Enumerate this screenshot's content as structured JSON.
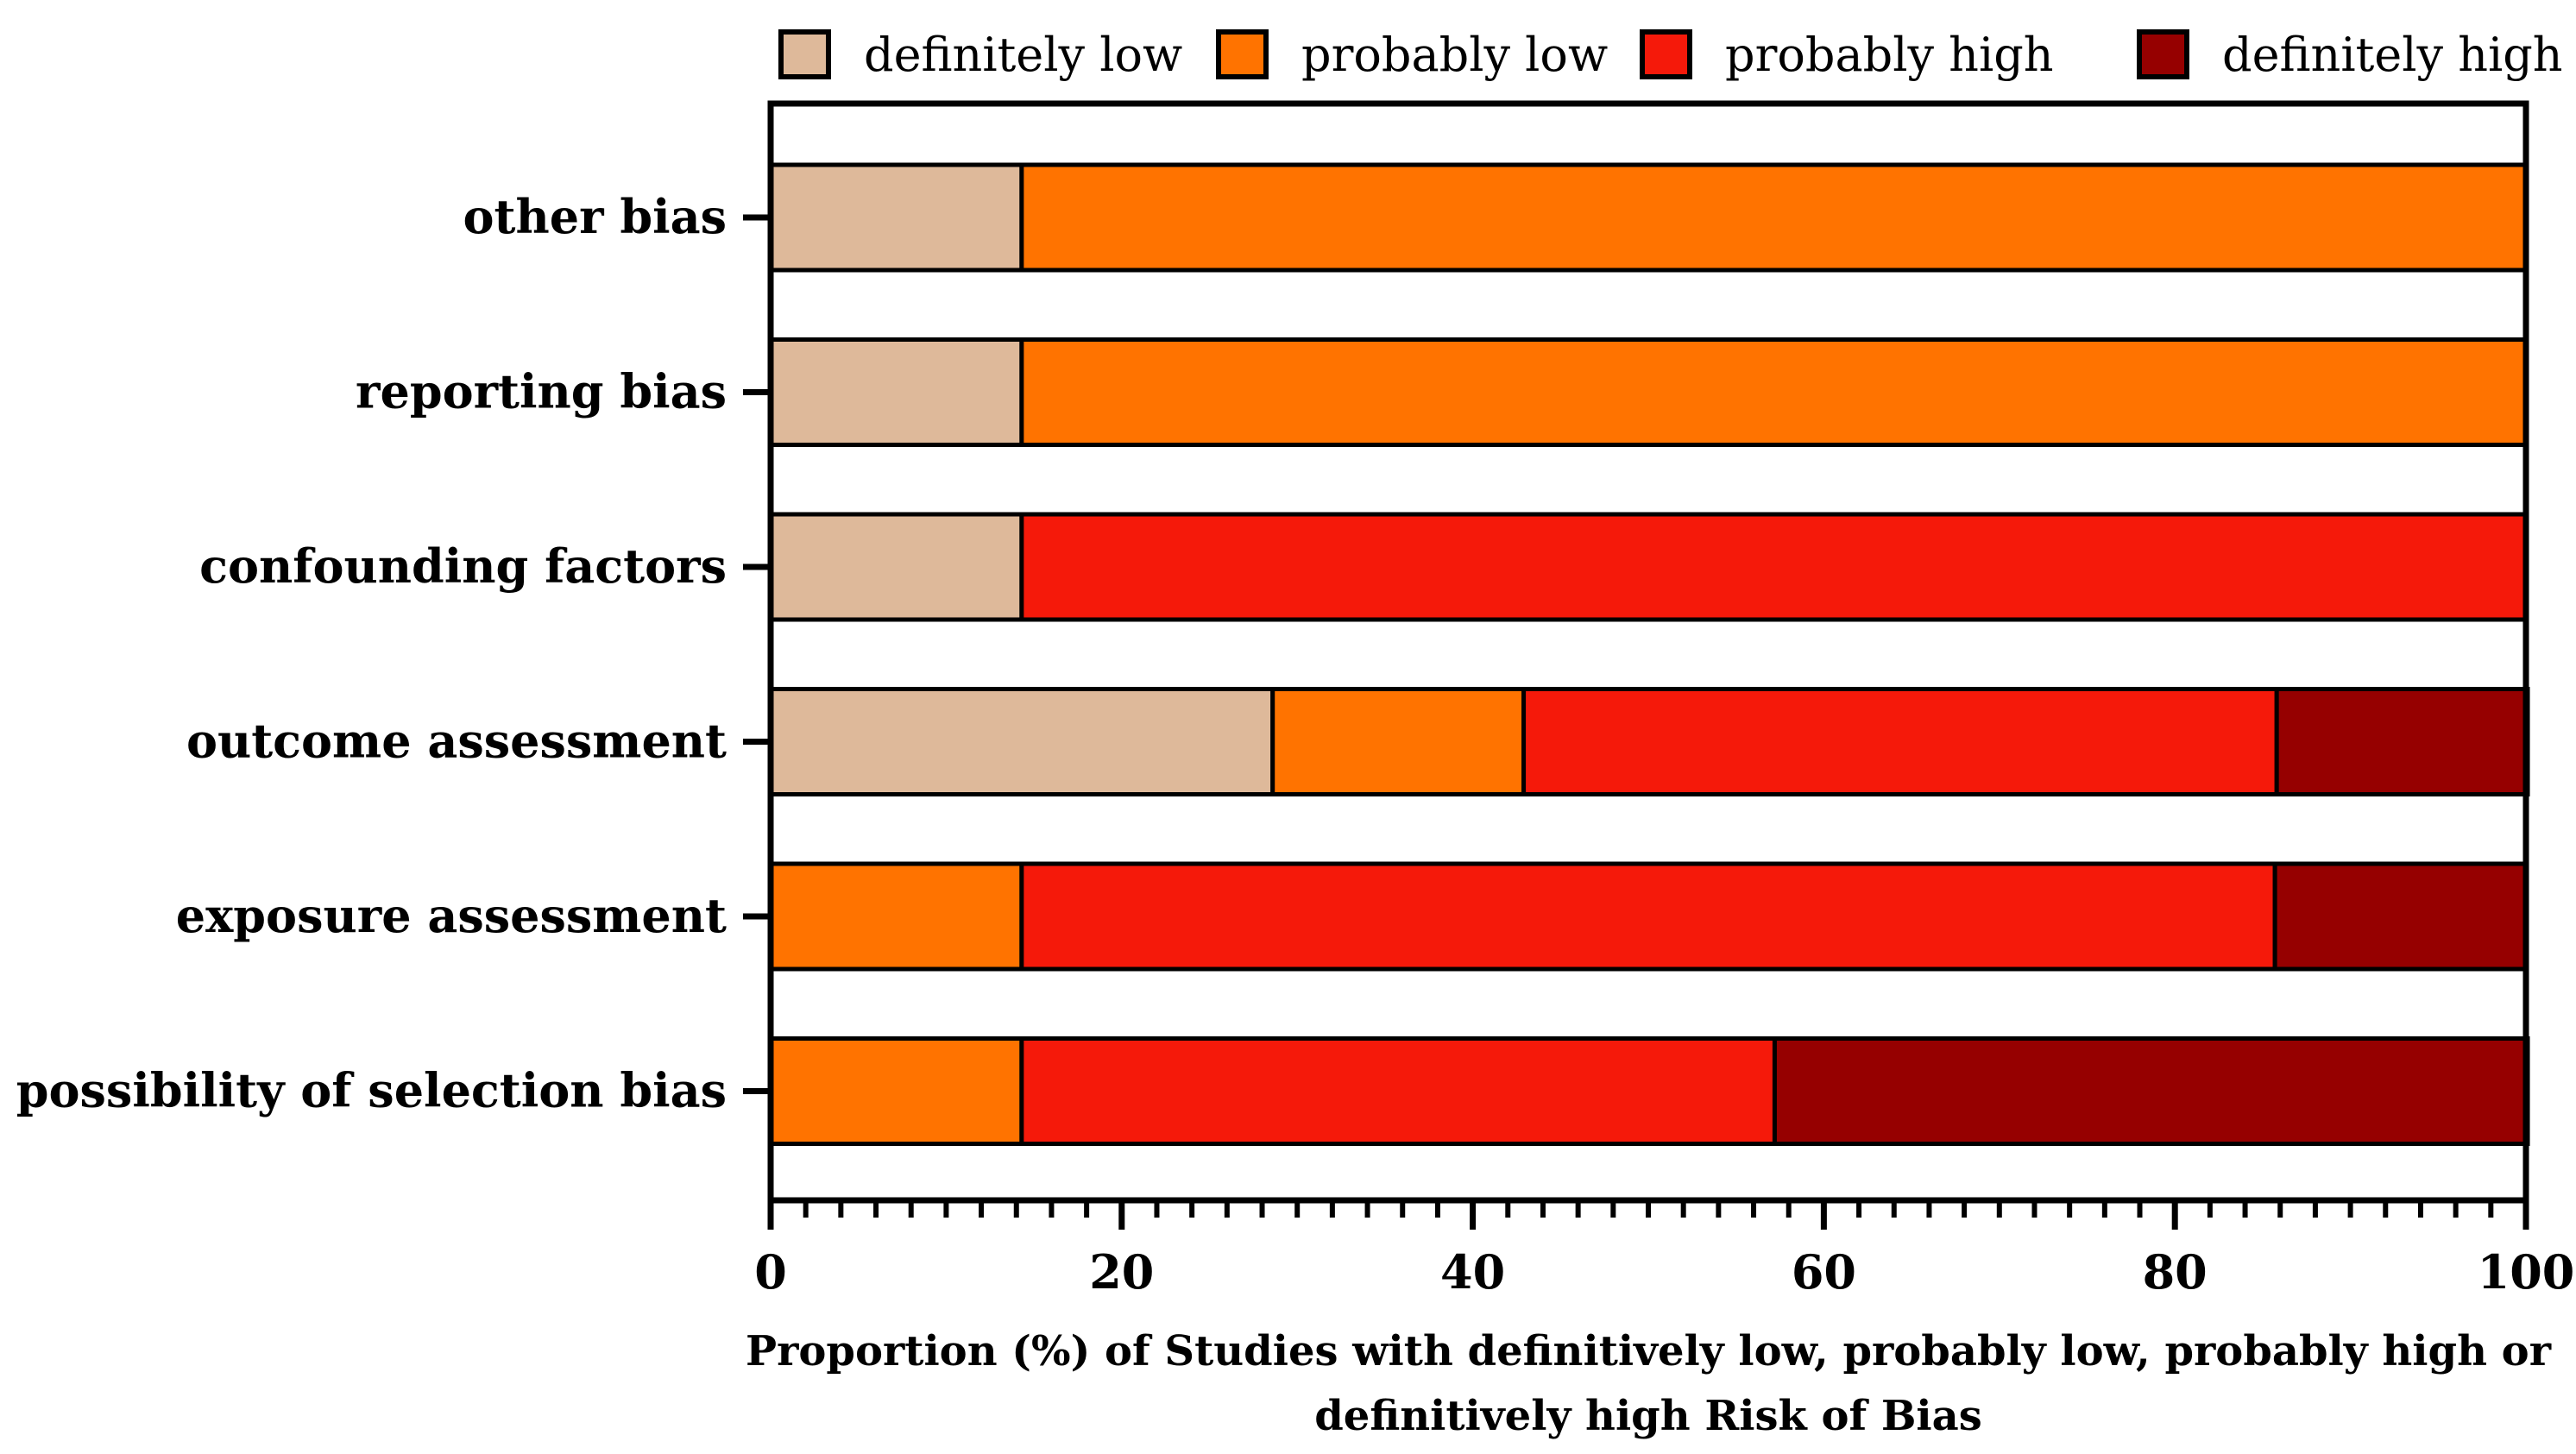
{
  "chart_data": {
    "type": "bar",
    "orientation": "horizontal",
    "stacked": true,
    "categories": [
      "other bias",
      "reporting bias",
      "confounding factors",
      "outcome assessment",
      "exposure assessment",
      "possibility of selection bias"
    ],
    "series": [
      {
        "name": "definitely low",
        "color": "#DEB99A",
        "values": [
          14.3,
          14.3,
          14.3,
          28.6,
          0,
          0
        ]
      },
      {
        "name": "probably low",
        "color": "#FF7300",
        "values": [
          85.7,
          85.7,
          0,
          14.3,
          14.3,
          14.3
        ]
      },
      {
        "name": "probably high",
        "color": "#F5190A",
        "values": [
          0,
          0,
          85.7,
          42.9,
          71.4,
          42.9
        ]
      },
      {
        "name": "definitely high",
        "color": "#960000",
        "values": [
          0,
          0,
          0,
          14.3,
          14.3,
          42.9
        ]
      }
    ],
    "xlim": [
      0,
      100
    ],
    "xticks": [
      "0",
      "20",
      "40",
      "60",
      "80",
      "100"
    ],
    "xlabel": [
      "Proportion (%) of Studies with definitively low, probably low, probably high or",
      "definitively high Risk of Bias"
    ],
    "ylabel": "",
    "title": "",
    "legend_position": "top",
    "grid": false
  }
}
